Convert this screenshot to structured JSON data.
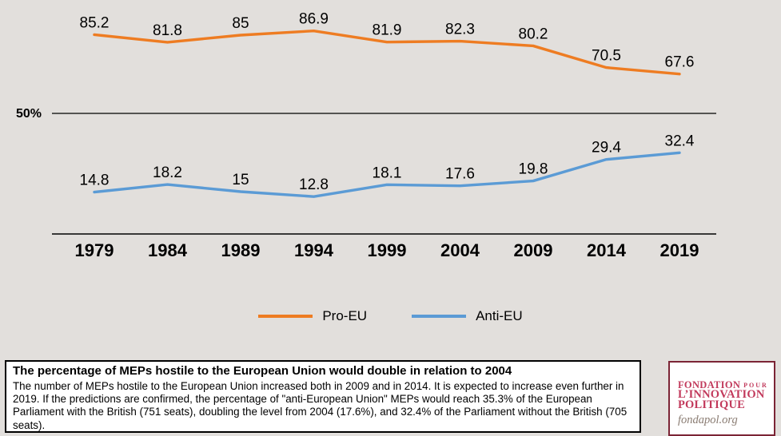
{
  "background_color": "#e2dfdc",
  "chart_data": {
    "type": "line",
    "title": "",
    "categories": [
      "1979",
      "1984",
      "1989",
      "1994",
      "1999",
      "2004",
      "2009",
      "2014",
      "2019"
    ],
    "series": [
      {
        "name": "Pro-EU",
        "color": "#ee7c22",
        "values": [
          85.2,
          81.8,
          85,
          86.9,
          81.9,
          82.3,
          80.2,
          70.5,
          67.6
        ]
      },
      {
        "name": "Anti-EU",
        "color": "#5b9bd5",
        "values": [
          14.8,
          18.2,
          15,
          12.8,
          18.1,
          17.6,
          19.8,
          29.4,
          32.4
        ]
      }
    ],
    "reference_line": {
      "value": 50,
      "label": "50%"
    },
    "ylim": [
      0,
      100
    ],
    "grid": false,
    "data_labels": true,
    "legend_position": "bottom-center"
  },
  "legend": {
    "items": [
      {
        "label": "Pro-EU",
        "color": "#ee7c22"
      },
      {
        "label": "Anti-EU",
        "color": "#5b9bd5"
      }
    ]
  },
  "caption": {
    "title": "The percentage of MEPs hostile to the European Union would double in relation to 2004",
    "body": "The number of MEPs hostile to the European Union increased both in 2009 and in 2014. It is expected to increase even further in 2019. If the predictions are confirmed, the percentage of \"anti-European Union\" MEPs would reach 35.3% of the European Parliament with the British (751 seats), doubling the level from 2004 (17.6%), and 32.4% of the Parliament without the British (705 seats)."
  },
  "logo": {
    "fondation": "FONDATION",
    "pour": "POUR",
    "innovation": "L’INNOVATION",
    "politique": "POLITIQUE",
    "site": "fondapol.org",
    "accent_color": "#c23a5c",
    "border_color": "#7b2435",
    "site_color": "#8a7c72"
  }
}
